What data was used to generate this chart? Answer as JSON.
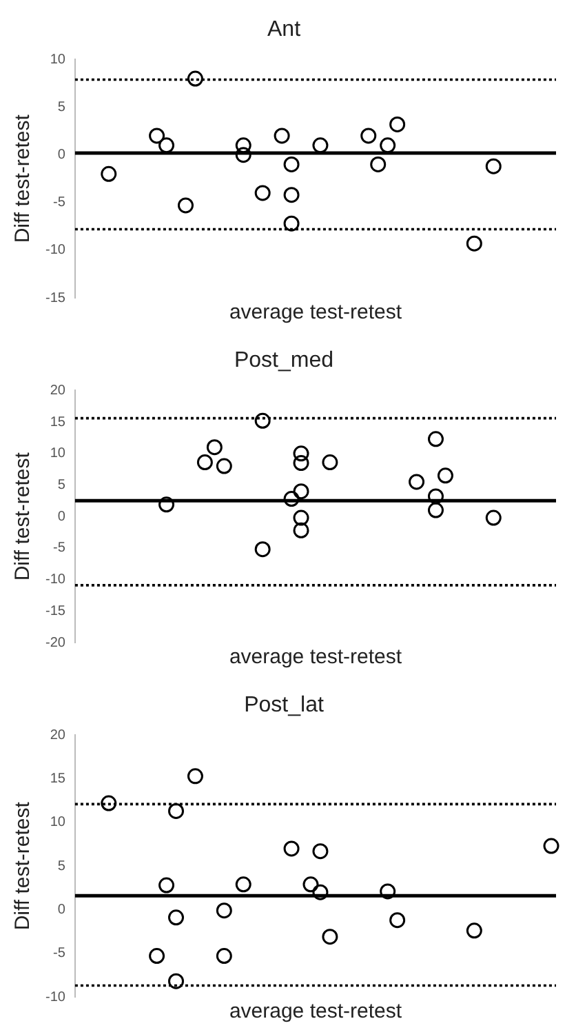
{
  "chart_data": [
    {
      "type": "scatter",
      "title": "Ant",
      "xlabel": "average test-retest",
      "ylabel": "Diff test-retest",
      "marker": "circle",
      "grid": false,
      "tick_labels": "y",
      "categories": [
        null,
        null,
        null,
        null,
        null,
        null,
        null,
        null,
        null,
        null,
        null,
        null,
        null,
        null,
        null,
        null,
        null,
        null,
        null,
        null,
        null,
        null,
        null,
        null,
        null,
        null,
        null,
        null,
        null,
        null,
        null,
        null,
        null,
        null,
        null,
        null,
        null,
        null,
        null,
        null,
        null,
        null,
        null,
        null,
        null,
        null,
        null,
        null,
        null,
        null
      ],
      "series": [
        {
          "color": "#000000",
          "values": [
            null,
            null,
            null,
            -2,
            null,
            null,
            null,
            null,
            2,
            1,
            null,
            -5.3,
            8,
            null,
            null,
            null,
            null,
            1,
            null,
            -4,
            null,
            2,
            -1,
            null,
            null,
            1,
            null,
            null,
            null,
            null,
            2,
            -1,
            1,
            3.2,
            null,
            null,
            null,
            null,
            null,
            null,
            null,
            -9.3,
            null,
            -1.2,
            null,
            null,
            null,
            null,
            null,
            null
          ]
        },
        {
          "color": "#000000",
          "values": [
            null,
            null,
            null,
            null,
            null,
            null,
            null,
            null,
            null,
            null,
            null,
            null,
            null,
            null,
            null,
            null,
            null,
            0,
            null,
            null,
            null,
            null,
            -4.2,
            null,
            null,
            null,
            null,
            null,
            null,
            null,
            null,
            null,
            null,
            null,
            null,
            null,
            null,
            null,
            null,
            null,
            null,
            null,
            null,
            null,
            null,
            null,
            null,
            null,
            null,
            null
          ]
        },
        {
          "color": "#000000",
          "values": [
            null,
            null,
            null,
            null,
            null,
            null,
            null,
            null,
            null,
            null,
            null,
            null,
            null,
            null,
            null,
            null,
            null,
            null,
            null,
            null,
            null,
            null,
            -7.2,
            null,
            null,
            null,
            null,
            null,
            null,
            null,
            null,
            null,
            null,
            null,
            null,
            null,
            null,
            null,
            null,
            null,
            null,
            null,
            null,
            null,
            null,
            null,
            null,
            null,
            null,
            null
          ]
        }
      ],
      "ylim": [
        -15,
        10
      ],
      "yticks": [
        -15,
        -10,
        -5,
        0,
        5,
        10
      ],
      "ref_lines": [
        {
          "axis": "y",
          "value": 0.2,
          "color": "#000000",
          "line_style": "solid"
        },
        {
          "axis": "y",
          "value": 7.9,
          "color": "#000000",
          "line_style": "dotted"
        },
        {
          "axis": "y",
          "value": -7.8,
          "color": "#000000",
          "line_style": "dotted"
        }
      ]
    },
    {
      "type": "scatter",
      "title": "Post_med",
      "xlabel": "average test-retest",
      "ylabel": "Diff test-retest",
      "marker": "circle",
      "grid": false,
      "tick_labels": "y",
      "categories": [
        null,
        null,
        null,
        null,
        null,
        null,
        null,
        null,
        null,
        null,
        null,
        null,
        null,
        null,
        null,
        null,
        null,
        null,
        null,
        null,
        null,
        null,
        null,
        null,
        null,
        null,
        null,
        null,
        null,
        null,
        null,
        null,
        null,
        null,
        null,
        null,
        null,
        null,
        null,
        null,
        null,
        null,
        null,
        null,
        null,
        null,
        null,
        null,
        null,
        null
      ],
      "series": [
        {
          "color": "#000000",
          "values": [
            null,
            null,
            null,
            null,
            null,
            null,
            null,
            null,
            null,
            1.9,
            null,
            null,
            null,
            8.6,
            11,
            8,
            null,
            null,
            null,
            15.2,
            null,
            null,
            2.8,
            10,
            null,
            null,
            8.6,
            null,
            null,
            null,
            null,
            null,
            null,
            null,
            null,
            5.5,
            null,
            12.3,
            6.5,
            null,
            null,
            null,
            null,
            -0.2,
            null,
            null,
            null,
            null,
            null,
            null
          ]
        },
        {
          "color": "#000000",
          "values": [
            null,
            null,
            null,
            null,
            null,
            null,
            null,
            null,
            null,
            null,
            null,
            null,
            null,
            null,
            null,
            null,
            null,
            null,
            null,
            -5.2,
            null,
            null,
            null,
            8.5,
            null,
            null,
            null,
            null,
            null,
            null,
            null,
            null,
            null,
            null,
            null,
            null,
            null,
            3.2,
            null,
            null,
            null,
            null,
            null,
            null,
            null,
            null,
            null,
            null,
            null,
            null
          ]
        },
        {
          "color": "#000000",
          "values": [
            null,
            null,
            null,
            null,
            null,
            null,
            null,
            null,
            null,
            null,
            null,
            null,
            null,
            null,
            null,
            null,
            null,
            null,
            null,
            null,
            null,
            null,
            null,
            4,
            null,
            null,
            null,
            null,
            null,
            null,
            null,
            null,
            null,
            null,
            null,
            null,
            null,
            1,
            null,
            null,
            null,
            null,
            null,
            null,
            null,
            null,
            null,
            null,
            null,
            null
          ]
        },
        {
          "color": "#000000",
          "values": [
            null,
            null,
            null,
            null,
            null,
            null,
            null,
            null,
            null,
            null,
            null,
            null,
            null,
            null,
            null,
            null,
            null,
            null,
            null,
            null,
            null,
            null,
            null,
            -0.2,
            null,
            null,
            null,
            null,
            null,
            null,
            null,
            null,
            null,
            null,
            null,
            null,
            null,
            null,
            null,
            null,
            null,
            null,
            null,
            null,
            null,
            null,
            null,
            null,
            null,
            null
          ]
        },
        {
          "color": "#000000",
          "values": [
            null,
            null,
            null,
            null,
            null,
            null,
            null,
            null,
            null,
            null,
            null,
            null,
            null,
            null,
            null,
            null,
            null,
            null,
            null,
            null,
            null,
            null,
            null,
            -2.2,
            null,
            null,
            null,
            null,
            null,
            null,
            null,
            null,
            null,
            null,
            null,
            null,
            null,
            null,
            null,
            null,
            null,
            null,
            null,
            null,
            null,
            null,
            null,
            null,
            null,
            null
          ]
        }
      ],
      "ylim": [
        -20,
        20
      ],
      "yticks": [
        -20,
        -15,
        -10,
        -5,
        0,
        5,
        10,
        15,
        20
      ],
      "ref_lines": [
        {
          "axis": "y",
          "value": 2.5,
          "color": "#000000",
          "line_style": "solid"
        },
        {
          "axis": "y",
          "value": 15.6,
          "color": "#000000",
          "line_style": "dotted"
        },
        {
          "axis": "y",
          "value": -10.9,
          "color": "#000000",
          "line_style": "dotted"
        }
      ]
    },
    {
      "type": "scatter",
      "title": "Post_lat",
      "xlabel": "average test-retest",
      "ylabel": "Diff test-retest",
      "marker": "circle",
      "grid": false,
      "tick_labels": "y",
      "categories": [
        null,
        null,
        null,
        null,
        null,
        null,
        null,
        null,
        null,
        null,
        null,
        null,
        null,
        null,
        null,
        null,
        null,
        null,
        null,
        null,
        null,
        null,
        null,
        null,
        null,
        null,
        null,
        null,
        null,
        null,
        null,
        null,
        null,
        null,
        null,
        null,
        null,
        null,
        null,
        null,
        null,
        null,
        null,
        null,
        null,
        null,
        null,
        null,
        null,
        null
      ],
      "series": [
        {
          "color": "#000000",
          "values": [
            null,
            null,
            null,
            12.2,
            null,
            null,
            null,
            null,
            -5.3,
            2.8,
            11.3,
            null,
            15.3,
            null,
            null,
            -0.1,
            null,
            2.9,
            null,
            null,
            null,
            null,
            7.0,
            null,
            2.9,
            6.7,
            -3.1,
            null,
            null,
            null,
            null,
            null,
            2.1,
            -1.2,
            null,
            null,
            null,
            null,
            null,
            null,
            null,
            -2.4,
            null,
            null,
            null,
            null,
            null,
            null,
            null,
            7.3
          ]
        },
        {
          "color": "#000000",
          "values": [
            null,
            null,
            null,
            null,
            null,
            null,
            null,
            null,
            null,
            null,
            -0.9,
            null,
            null,
            null,
            null,
            -5.3,
            null,
            null,
            null,
            null,
            null,
            null,
            null,
            null,
            null,
            2.0,
            null,
            null,
            null,
            null,
            null,
            null,
            null,
            null,
            null,
            null,
            null,
            null,
            null,
            null,
            null,
            null,
            null,
            null,
            null,
            null,
            null,
            null,
            null,
            null
          ]
        },
        {
          "color": "#000000",
          "values": [
            null,
            null,
            null,
            null,
            null,
            null,
            null,
            null,
            null,
            null,
            -8.2,
            null,
            null,
            null,
            null,
            null,
            null,
            null,
            null,
            null,
            null,
            null,
            null,
            null,
            null,
            null,
            null,
            null,
            null,
            null,
            null,
            null,
            null,
            null,
            null,
            null,
            null,
            null,
            null,
            null,
            null,
            null,
            null,
            null,
            null,
            null,
            null,
            null,
            null,
            null
          ]
        }
      ],
      "ylim": [
        -10,
        20
      ],
      "yticks": [
        -10,
        -5,
        0,
        5,
        10,
        15,
        20
      ],
      "ref_lines": [
        {
          "axis": "y",
          "value": 1.6,
          "color": "#000000",
          "line_style": "solid"
        },
        {
          "axis": "y",
          "value": 12.1,
          "color": "#000000",
          "line_style": "dotted"
        },
        {
          "axis": "y",
          "value": -8.7,
          "color": "#000000",
          "line_style": "dotted"
        }
      ]
    }
  ]
}
